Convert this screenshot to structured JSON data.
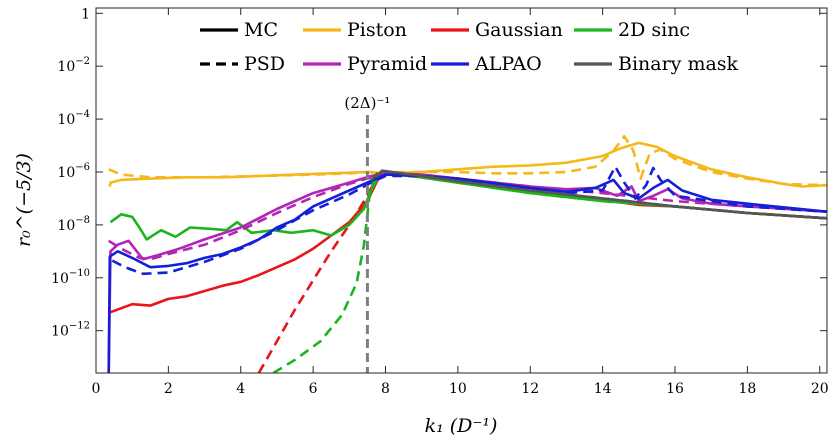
{
  "chart_data": {
    "type": "line",
    "xlabel": "k₁ (D⁻¹)",
    "ylabel": "r₀^(−5/3)",
    "xlim": [
      0,
      20.2
    ],
    "ylim_log10": [
      -13.6,
      0.2
    ],
    "x_ticks": [
      {
        "v": 0,
        "label": "0"
      },
      {
        "v": 2,
        "label": "2"
      },
      {
        "v": 4,
        "label": "4"
      },
      {
        "v": 6,
        "label": "6"
      },
      {
        "v": 8,
        "label": "8"
      },
      {
        "v": 10,
        "label": "10"
      },
      {
        "v": 12,
        "label": "12"
      },
      {
        "v": 14,
        "label": "14"
      },
      {
        "v": 16,
        "label": "16"
      },
      {
        "v": 18,
        "label": "18"
      },
      {
        "v": 20,
        "label": "20"
      }
    ],
    "y_ticks": [
      {
        "e": 0,
        "base": "1",
        "exp": ""
      },
      {
        "e": -2,
        "base": "10",
        "exp": "−2"
      },
      {
        "e": -4,
        "base": "10",
        "exp": "−4"
      },
      {
        "e": -6,
        "base": "10",
        "exp": "−6"
      },
      {
        "e": -8,
        "base": "10",
        "exp": "−8"
      },
      {
        "e": -10,
        "base": "10",
        "exp": "−10"
      },
      {
        "e": -12,
        "base": "10",
        "exp": "−12"
      }
    ],
    "annotation": {
      "label": "(2Δ)⁻¹",
      "x": 7.5
    },
    "legend": [
      {
        "label": "MC",
        "style": "solid",
        "color": "#000000"
      },
      {
        "label": "Piston",
        "style": "solid",
        "color": "#F5B81A"
      },
      {
        "label": "Gaussian",
        "style": "solid",
        "color": "#E8151B"
      },
      {
        "label": "2D sinc",
        "style": "solid",
        "color": "#1DB51D"
      },
      {
        "label": "PSD",
        "style": "dashed",
        "color": "#000000"
      },
      {
        "label": "Pyramid",
        "style": "solid",
        "color": "#B225B5"
      },
      {
        "label": "ALPAO",
        "style": "solid",
        "color": "#1320D8"
      },
      {
        "label": "Binary mask",
        "style": "solid",
        "color": "#555555"
      }
    ],
    "series": [
      {
        "name": "Piston MC",
        "color": "#F5B81A",
        "style": "solid",
        "points": [
          [
            0.38,
            -6.55
          ],
          [
            0.4,
            -6.4
          ],
          [
            0.7,
            -6.3
          ],
          [
            1.5,
            -6.25
          ],
          [
            2.5,
            -6.2
          ],
          [
            3.5,
            -6.2
          ],
          [
            4.5,
            -6.15
          ],
          [
            5.5,
            -6.1
          ],
          [
            6.5,
            -6.05
          ],
          [
            7.5,
            -6.0
          ],
          [
            8,
            -6.05
          ],
          [
            9,
            -6.0
          ],
          [
            10,
            -5.9
          ],
          [
            11,
            -5.8
          ],
          [
            12,
            -5.75
          ],
          [
            13,
            -5.65
          ],
          [
            14,
            -5.4
          ],
          [
            14.5,
            -5.1
          ],
          [
            15,
            -4.9
          ],
          [
            15.5,
            -5.05
          ],
          [
            16,
            -5.4
          ],
          [
            17,
            -5.9
          ],
          [
            18,
            -6.2
          ],
          [
            19,
            -6.45
          ],
          [
            19.5,
            -6.55
          ],
          [
            20.2,
            -6.5
          ]
        ]
      },
      {
        "name": "Piston PSD",
        "color": "#F5B81A",
        "style": "dashed",
        "points": [
          [
            0.35,
            -5.9
          ],
          [
            0.7,
            -6.1
          ],
          [
            1.5,
            -6.2
          ],
          [
            3,
            -6.2
          ],
          [
            4.5,
            -6.15
          ],
          [
            6,
            -6.1
          ],
          [
            7,
            -6.05
          ],
          [
            7.7,
            -6.0
          ],
          [
            9,
            -6.0
          ],
          [
            10,
            -6.0
          ],
          [
            11,
            -6.05
          ],
          [
            12,
            -6.05
          ],
          [
            13,
            -6.0
          ],
          [
            13.8,
            -5.8
          ],
          [
            14.3,
            -5.2
          ],
          [
            14.6,
            -4.65
          ],
          [
            14.85,
            -5.2
          ],
          [
            15.05,
            -6.25
          ],
          [
            15.3,
            -5.3
          ],
          [
            15.6,
            -5.15
          ],
          [
            16,
            -5.5
          ],
          [
            17,
            -6.0
          ],
          [
            18,
            -6.25
          ],
          [
            19,
            -6.45
          ],
          [
            20.2,
            -6.5
          ]
        ]
      },
      {
        "name": "Gaussian MC",
        "color": "#E8151B",
        "style": "solid",
        "points": [
          [
            0.4,
            -11.3
          ],
          [
            0.7,
            -11.15
          ],
          [
            1,
            -11.0
          ],
          [
            1.5,
            -11.05
          ],
          [
            2,
            -10.8
          ],
          [
            2.5,
            -10.7
          ],
          [
            3,
            -10.5
          ],
          [
            3.5,
            -10.3
          ],
          [
            4,
            -10.15
          ],
          [
            4.5,
            -9.9
          ],
          [
            5,
            -9.6
          ],
          [
            5.5,
            -9.3
          ],
          [
            6,
            -8.9
          ],
          [
            6.5,
            -8.4
          ],
          [
            7,
            -7.9
          ],
          [
            7.5,
            -7.1
          ],
          [
            7.8,
            -6.25
          ],
          [
            8,
            -6.05
          ],
          [
            8.5,
            -6.1
          ],
          [
            9,
            -6.2
          ],
          [
            10,
            -6.4
          ],
          [
            12,
            -6.75
          ],
          [
            14,
            -7.05
          ],
          [
            15,
            -7.25
          ],
          [
            16,
            -7.3
          ],
          [
            18,
            -7.55
          ],
          [
            20.2,
            -7.75
          ]
        ]
      },
      {
        "name": "Gaussian PSD",
        "color": "#E8151B",
        "style": "dashed",
        "points": [
          [
            4.5,
            -13.6
          ],
          [
            5,
            -12.4
          ],
          [
            5.5,
            -11.2
          ],
          [
            6,
            -10.1
          ],
          [
            6.5,
            -9.0
          ],
          [
            7,
            -8.0
          ],
          [
            7.5,
            -6.9
          ],
          [
            7.75,
            -6.2
          ],
          [
            8,
            -6.05
          ],
          [
            9,
            -6.2
          ],
          [
            10,
            -6.4
          ],
          [
            12,
            -6.75
          ],
          [
            14,
            -7.05
          ],
          [
            16,
            -7.3
          ],
          [
            18,
            -7.55
          ],
          [
            20.2,
            -7.75
          ]
        ]
      },
      {
        "name": "2D sinc MC",
        "color": "#1DB51D",
        "style": "solid",
        "points": [
          [
            0.4,
            -7.9
          ],
          [
            0.7,
            -7.6
          ],
          [
            1,
            -7.7
          ],
          [
            1.2,
            -8.1
          ],
          [
            1.4,
            -8.55
          ],
          [
            1.8,
            -8.2
          ],
          [
            2.2,
            -8.45
          ],
          [
            2.6,
            -8.1
          ],
          [
            3.2,
            -8.15
          ],
          [
            3.6,
            -8.2
          ],
          [
            3.9,
            -7.9
          ],
          [
            4.3,
            -8.3
          ],
          [
            4.9,
            -8.2
          ],
          [
            5.4,
            -8.3
          ],
          [
            6,
            -8.2
          ],
          [
            6.5,
            -8.4
          ],
          [
            7,
            -8.0
          ],
          [
            7.4,
            -7.4
          ],
          [
            7.6,
            -6.7
          ],
          [
            7.8,
            -6.2
          ],
          [
            8,
            -6.05
          ],
          [
            9,
            -6.2
          ],
          [
            10,
            -6.4
          ],
          [
            12,
            -6.8
          ],
          [
            14,
            -7.1
          ],
          [
            16,
            -7.3
          ],
          [
            18,
            -7.55
          ],
          [
            20.2,
            -7.75
          ]
        ]
      },
      {
        "name": "2D sinc PSD",
        "color": "#1DB51D",
        "style": "dashed",
        "points": [
          [
            4.9,
            -13.6
          ],
          [
            5.5,
            -13.1
          ],
          [
            6.2,
            -12.4
          ],
          [
            6.8,
            -11.4
          ],
          [
            7.2,
            -10.2
          ],
          [
            7.4,
            -8.8
          ],
          [
            7.55,
            -7.0
          ],
          [
            7.7,
            -6.15
          ],
          [
            8,
            -6.05
          ],
          [
            9,
            -6.2
          ],
          [
            10,
            -6.4
          ],
          [
            12,
            -6.8
          ],
          [
            14,
            -7.1
          ],
          [
            16,
            -7.3
          ],
          [
            18,
            -7.55
          ],
          [
            20.2,
            -7.75
          ]
        ]
      },
      {
        "name": "Pyramid MC",
        "color": "#B225B5",
        "style": "solid",
        "points": [
          [
            0.35,
            -13.6
          ],
          [
            0.4,
            -9.0
          ],
          [
            0.6,
            -8.75
          ],
          [
            0.9,
            -8.6
          ],
          [
            1.3,
            -9.3
          ],
          [
            1.7,
            -9.15
          ],
          [
            2.3,
            -8.9
          ],
          [
            3,
            -8.55
          ],
          [
            4,
            -8.1
          ],
          [
            5,
            -7.4
          ],
          [
            6,
            -6.8
          ],
          [
            7,
            -6.4
          ],
          [
            7.6,
            -6.15
          ],
          [
            8,
            -6.05
          ],
          [
            9,
            -6.1
          ],
          [
            10,
            -6.25
          ],
          [
            12,
            -6.55
          ],
          [
            13,
            -6.65
          ],
          [
            13.8,
            -6.6
          ],
          [
            14.4,
            -6.9
          ],
          [
            14.8,
            -6.55
          ],
          [
            15,
            -7.1
          ],
          [
            15.4,
            -6.9
          ],
          [
            15.8,
            -6.65
          ],
          [
            16.2,
            -7.0
          ],
          [
            17,
            -7.2
          ],
          [
            18,
            -7.3
          ],
          [
            20.2,
            -7.5
          ]
        ]
      },
      {
        "name": "Pyramid PSD",
        "color": "#B225B5",
        "style": "dashed",
        "points": [
          [
            0.35,
            -8.6
          ],
          [
            0.7,
            -8.9
          ],
          [
            1.2,
            -9.25
          ],
          [
            1.5,
            -9.3
          ],
          [
            2,
            -9.1
          ],
          [
            3,
            -8.75
          ],
          [
            4,
            -8.2
          ],
          [
            5,
            -7.55
          ],
          [
            6,
            -6.95
          ],
          [
            7,
            -6.45
          ],
          [
            7.6,
            -6.2
          ],
          [
            8,
            -6.05
          ],
          [
            9,
            -6.1
          ],
          [
            10,
            -6.25
          ],
          [
            12,
            -6.55
          ],
          [
            14,
            -6.8
          ],
          [
            16,
            -7.1
          ],
          [
            18,
            -7.3
          ],
          [
            20.2,
            -7.5
          ]
        ]
      },
      {
        "name": "ALPAO MC",
        "color": "#1320D8",
        "style": "solid",
        "points": [
          [
            0.35,
            -13.6
          ],
          [
            0.38,
            -9.2
          ],
          [
            0.6,
            -9.0
          ],
          [
            1,
            -9.25
          ],
          [
            1.5,
            -9.6
          ],
          [
            2,
            -9.55
          ],
          [
            2.5,
            -9.45
          ],
          [
            3,
            -9.25
          ],
          [
            3.5,
            -9.1
          ],
          [
            4,
            -8.85
          ],
          [
            4.5,
            -8.55
          ],
          [
            5,
            -8.1
          ],
          [
            5.5,
            -7.8
          ],
          [
            6,
            -7.3
          ],
          [
            6.5,
            -7.0
          ],
          [
            7,
            -6.7
          ],
          [
            7.5,
            -6.4
          ],
          [
            8,
            -6.1
          ],
          [
            9,
            -6.15
          ],
          [
            10,
            -6.25
          ],
          [
            12,
            -6.6
          ],
          [
            13,
            -6.75
          ],
          [
            13.8,
            -6.6
          ],
          [
            14.3,
            -6.3
          ],
          [
            14.6,
            -6.8
          ],
          [
            15,
            -7.0
          ],
          [
            15.4,
            -6.6
          ],
          [
            15.8,
            -6.3
          ],
          [
            16.2,
            -6.7
          ],
          [
            17,
            -7.05
          ],
          [
            18,
            -7.2
          ],
          [
            20.2,
            -7.5
          ]
        ]
      },
      {
        "name": "ALPAO PSD",
        "color": "#1320D8",
        "style": "dashed",
        "points": [
          [
            0.45,
            -9.35
          ],
          [
            0.8,
            -9.6
          ],
          [
            1.3,
            -9.85
          ],
          [
            2,
            -9.8
          ],
          [
            3,
            -9.4
          ],
          [
            4,
            -8.9
          ],
          [
            5,
            -8.2
          ],
          [
            6,
            -7.45
          ],
          [
            7,
            -6.85
          ],
          [
            7.6,
            -6.4
          ],
          [
            8,
            -6.15
          ],
          [
            9,
            -6.15
          ],
          [
            10,
            -6.3
          ],
          [
            12,
            -6.65
          ],
          [
            13,
            -6.8
          ],
          [
            14,
            -6.7
          ],
          [
            14.35,
            -5.8
          ],
          [
            14.6,
            -6.4
          ],
          [
            14.9,
            -7.0
          ],
          [
            15.2,
            -6.5
          ],
          [
            15.4,
            -5.85
          ],
          [
            15.6,
            -6.3
          ],
          [
            16,
            -6.9
          ],
          [
            17,
            -7.1
          ],
          [
            18,
            -7.3
          ],
          [
            20.2,
            -7.5
          ]
        ]
      },
      {
        "name": "Binary mask MC",
        "color": "#555555",
        "style": "solid",
        "points": [
          [
            7.75,
            -6.2
          ],
          [
            7.9,
            -5.95
          ],
          [
            9,
            -6.15
          ],
          [
            10,
            -6.35
          ],
          [
            12,
            -6.7
          ],
          [
            14,
            -7.0
          ],
          [
            16,
            -7.3
          ],
          [
            18,
            -7.55
          ],
          [
            20.2,
            -7.75
          ]
        ]
      },
      {
        "name": "Binary mask PSD",
        "color": "#555555",
        "style": "dashed",
        "points": [
          [
            7.6,
            -6.3
          ],
          [
            7.85,
            -5.95
          ],
          [
            9,
            -6.15
          ],
          [
            10,
            -6.35
          ],
          [
            12,
            -6.7
          ],
          [
            14,
            -7.0
          ],
          [
            16,
            -7.3
          ],
          [
            18,
            -7.55
          ],
          [
            20.2,
            -7.75
          ]
        ]
      }
    ]
  }
}
